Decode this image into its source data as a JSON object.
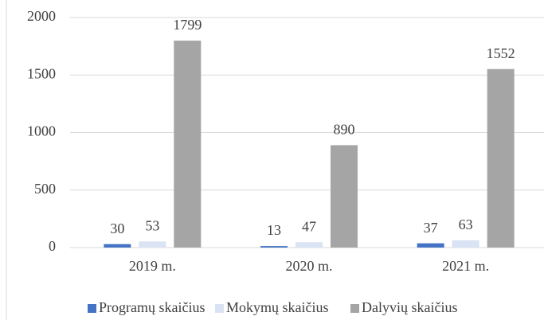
{
  "chart_data": {
    "type": "bar",
    "categories": [
      "2019 m.",
      "2020 m.",
      "2021 m."
    ],
    "series": [
      {
        "name": "Programų skaičius",
        "color": "#4472c4",
        "values": [
          30,
          13,
          37
        ]
      },
      {
        "name": "Mokymų skaičius",
        "color": "#dae3f3",
        "values": [
          53,
          47,
          63
        ]
      },
      {
        "name": "Dalyvių skaičius",
        "color": "#a5a5a5",
        "values": [
          1799,
          890,
          1552
        ]
      }
    ],
    "ylim": [
      0,
      2000
    ],
    "yticks": [
      0,
      500,
      1000,
      1500,
      2000
    ],
    "grid": true,
    "legend": "bottom"
  }
}
